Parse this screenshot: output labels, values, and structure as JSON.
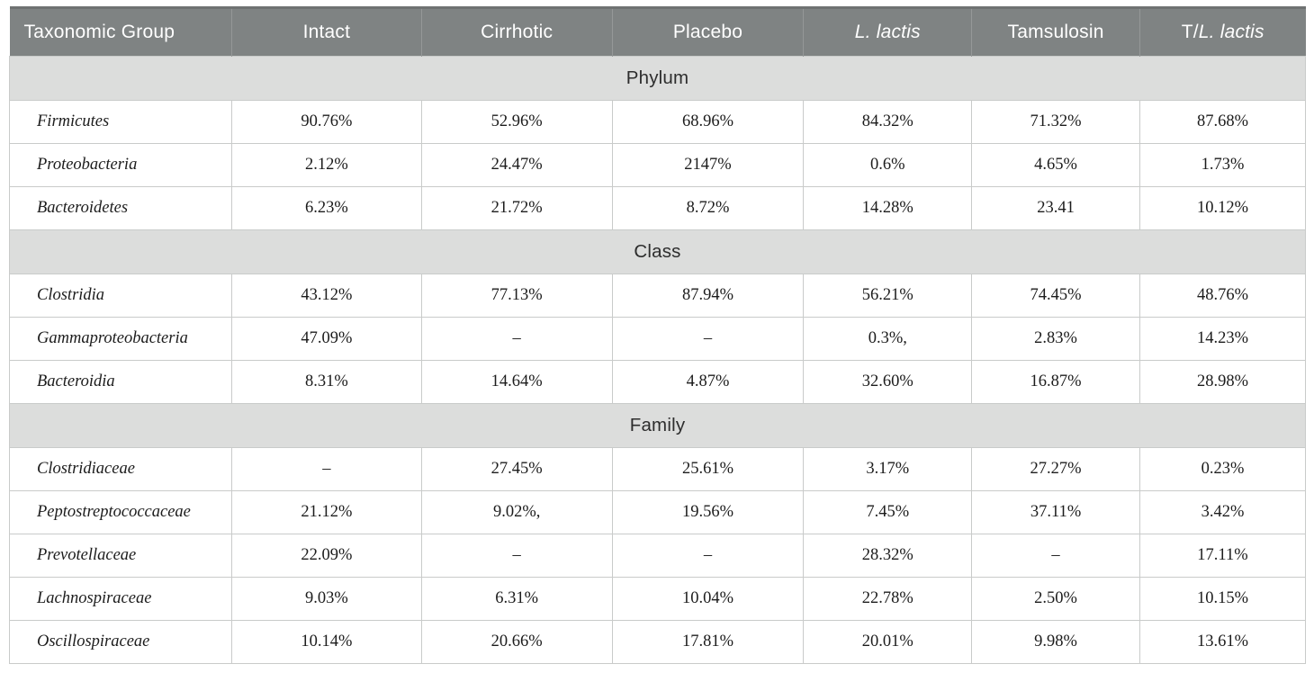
{
  "table": {
    "columns": [
      {
        "name": "taxonomic-group",
        "segments": [
          {
            "t": "Taxonomic Group",
            "i": false
          }
        ]
      },
      {
        "name": "intact",
        "segments": [
          {
            "t": "Intact",
            "i": false
          }
        ]
      },
      {
        "name": "cirrhotic",
        "segments": [
          {
            "t": "Cirrhotic",
            "i": false
          }
        ]
      },
      {
        "name": "placebo",
        "segments": [
          {
            "t": "Placebo",
            "i": false
          }
        ]
      },
      {
        "name": "l-lactis",
        "segments": [
          {
            "t": "L. lactis",
            "i": true
          }
        ]
      },
      {
        "name": "tamsulosin",
        "segments": [
          {
            "t": "Tamsulosin",
            "i": false
          }
        ]
      },
      {
        "name": "t-l-lactis",
        "segments": [
          {
            "t": "T/",
            "i": false
          },
          {
            "t": "L. lactis",
            "i": true
          }
        ]
      }
    ],
    "sections": [
      {
        "title": "Phylum",
        "rows": [
          {
            "taxon": "Firmicutes",
            "values": [
              "90.76%",
              "52.96%",
              "68.96%",
              "84.32%",
              "71.32%",
              "87.68%"
            ]
          },
          {
            "taxon": "Proteobacteria",
            "values": [
              "2.12%",
              "24.47%",
              "2147%",
              "0.6%",
              "4.65%",
              "1.73%"
            ]
          },
          {
            "taxon": "Bacteroidetes",
            "values": [
              "6.23%",
              "21.72%",
              "8.72%",
              "14.28%",
              "23.41",
              "10.12%"
            ]
          }
        ]
      },
      {
        "title": "Class",
        "rows": [
          {
            "taxon": "Clostridia",
            "values": [
              "43.12%",
              "77.13%",
              "87.94%",
              "56.21%",
              "74.45%",
              "48.76%"
            ]
          },
          {
            "taxon": "Gammaproteobacteria",
            "values": [
              "47.09%",
              "–",
              "–",
              "0.3%,",
              "2.83%",
              "14.23%"
            ]
          },
          {
            "taxon": "Bacteroidia",
            "values": [
              "8.31%",
              "14.64%",
              "4.87%",
              "32.60%",
              "16.87%",
              "28.98%"
            ]
          }
        ]
      },
      {
        "title": "Family",
        "rows": [
          {
            "taxon": "Clostridiaceae",
            "values": [
              "–",
              "27.45%",
              "25.61%",
              "3.17%",
              "27.27%",
              "0.23%"
            ]
          },
          {
            "taxon": "Peptostreptococcaceae",
            "values": [
              "21.12%",
              "9.02%,",
              "19.56%",
              "7.45%",
              "37.11%",
              "3.42%"
            ]
          },
          {
            "taxon": "Prevotellaceae",
            "values": [
              "22.09%",
              "–",
              "–",
              "28.32%",
              "–",
              "17.11%"
            ]
          },
          {
            "taxon": "Lachnospiraceae",
            "values": [
              "9.03%",
              "6.31%",
              "10.04%",
              "22.78%",
              "2.50%",
              "10.15%"
            ]
          },
          {
            "taxon": "Oscillospiraceae",
            "values": [
              "10.14%",
              "20.66%",
              "17.81%",
              "20.01%",
              "9.98%",
              "13.61%"
            ]
          }
        ]
      }
    ],
    "colors": {
      "header_bg": "#7f8383",
      "header_text": "#ffffff",
      "section_bg": "#dcdddc",
      "border": "#c9cbca",
      "text": "#1c1c1c"
    }
  }
}
